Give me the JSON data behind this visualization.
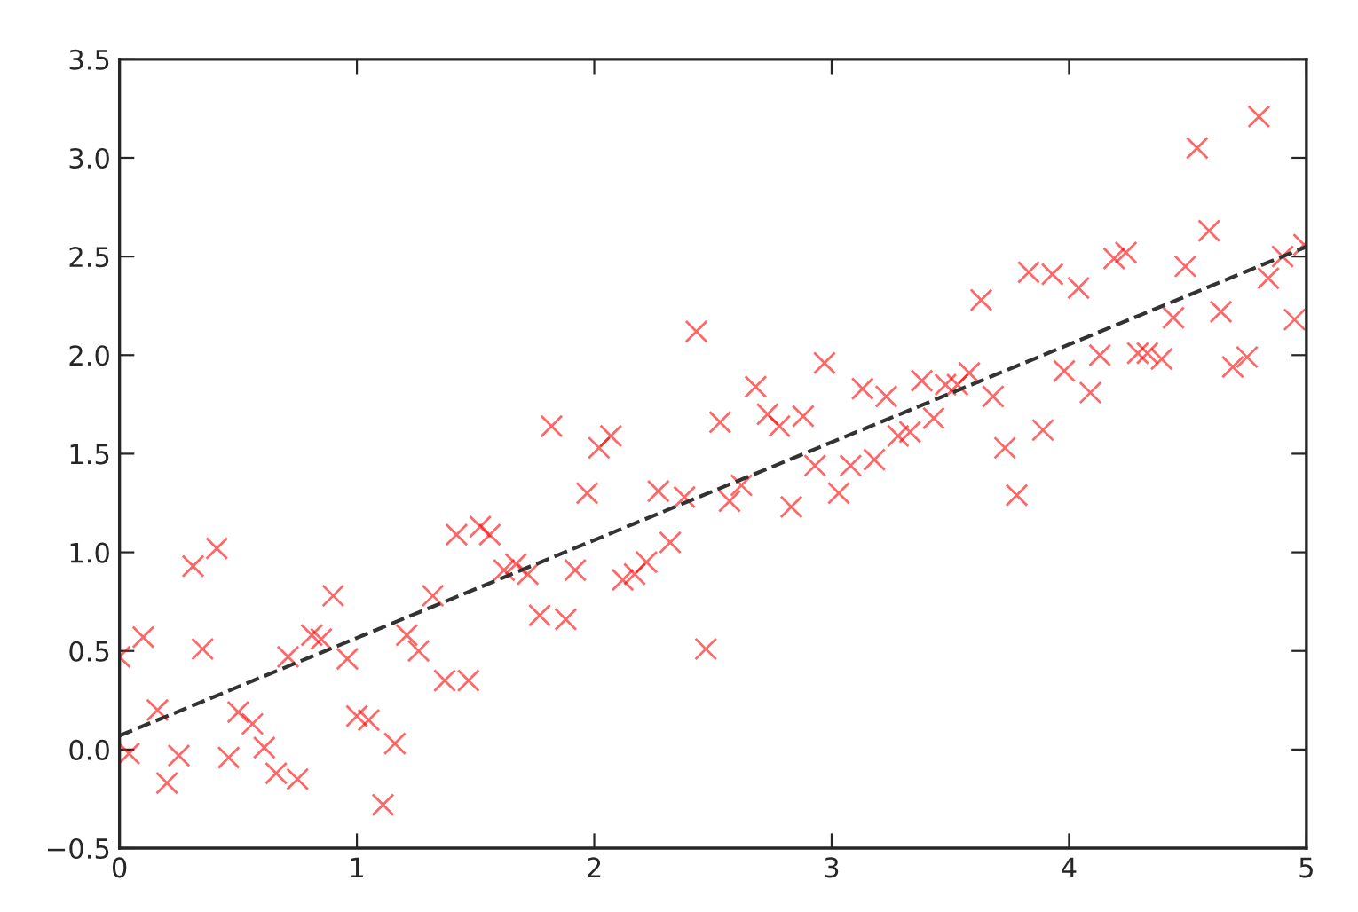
{
  "chart_data": {
    "type": "scatter",
    "xlim": [
      0,
      5
    ],
    "xticks": [
      0,
      1,
      2,
      3,
      4,
      5
    ],
    "ylim": [
      -0.5,
      3.5
    ],
    "yticks": [
      {
        "value": -0.5,
        "label": "−0.5"
      },
      {
        "value": 0,
        "label": "0.0"
      },
      0.5,
      {
        "value": 1,
        "label": "1.0"
      },
      1.5,
      {
        "value": 2,
        "label": "2.0"
      },
      2.5,
      {
        "value": 3,
        "label": "3.0"
      },
      3.5
    ],
    "grid": false,
    "series": [
      {
        "color": "#ff0000",
        "marker": "cross",
        "x": [
          0.0,
          0.04,
          0.1,
          0.16,
          0.2,
          0.25,
          0.31,
          0.35,
          0.41,
          0.46,
          0.5,
          0.56,
          0.61,
          0.66,
          0.71,
          0.75,
          0.81,
          0.85,
          0.9,
          0.96,
          1.0,
          1.05,
          1.11,
          1.16,
          1.21,
          1.26,
          1.32,
          1.37,
          1.42,
          1.47,
          1.52,
          1.56,
          1.62,
          1.67,
          1.72,
          1.77,
          1.82,
          1.88,
          1.92,
          1.97,
          2.02,
          2.07,
          2.12,
          2.17,
          2.22,
          2.27,
          2.32,
          2.38,
          2.43,
          2.47,
          2.53,
          2.57,
          2.62,
          2.68,
          2.73,
          2.78,
          2.83,
          2.88,
          2.93,
          2.97,
          3.03,
          3.08,
          3.13,
          3.18,
          3.23,
          3.28,
          3.33,
          3.38,
          3.43,
          3.48,
          3.53,
          3.58,
          3.63,
          3.68,
          3.73,
          3.78,
          3.83,
          3.89,
          3.93,
          3.98,
          4.04,
          4.09,
          4.13,
          4.19,
          4.24,
          4.29,
          4.33,
          4.39,
          4.44,
          4.49,
          4.54,
          4.59,
          4.64,
          4.69,
          4.75,
          4.8,
          4.84,
          4.9,
          4.95,
          4.99
        ],
        "values": [
          0.47,
          -0.02,
          0.57,
          0.2,
          -0.17,
          -0.03,
          0.93,
          0.51,
          1.02,
          -0.04,
          0.19,
          0.13,
          0.01,
          -0.12,
          0.47,
          -0.15,
          0.58,
          0.56,
          0.78,
          0.46,
          0.17,
          0.15,
          -0.28,
          0.03,
          0.58,
          0.5,
          0.78,
          0.35,
          1.09,
          0.35,
          1.13,
          1.09,
          0.91,
          0.94,
          0.89,
          0.68,
          1.64,
          0.66,
          0.91,
          1.3,
          1.53,
          1.59,
          0.86,
          0.89,
          0.95,
          1.31,
          1.05,
          1.28,
          2.12,
          0.51,
          1.66,
          1.26,
          1.34,
          1.84,
          1.7,
          1.64,
          1.23,
          1.69,
          1.44,
          1.96,
          1.3,
          1.44,
          1.83,
          1.47,
          1.79,
          1.59,
          1.61,
          1.87,
          1.68,
          1.85,
          1.85,
          1.91,
          2.28,
          1.79,
          1.53,
          1.29,
          2.42,
          1.62,
          2.41,
          1.92,
          2.34,
          1.81,
          2.0,
          2.49,
          2.52,
          2.01,
          2.01,
          1.98,
          2.19,
          2.45,
          3.05,
          2.63,
          2.22,
          1.94,
          1.99,
          3.21,
          2.39,
          2.5,
          2.18,
          2.56
        ]
      },
      {
        "type": "line",
        "color": "#333333",
        "line_style": "dashed",
        "x": [
          0,
          5
        ],
        "values": [
          0.07,
          2.55
        ]
      }
    ]
  }
}
